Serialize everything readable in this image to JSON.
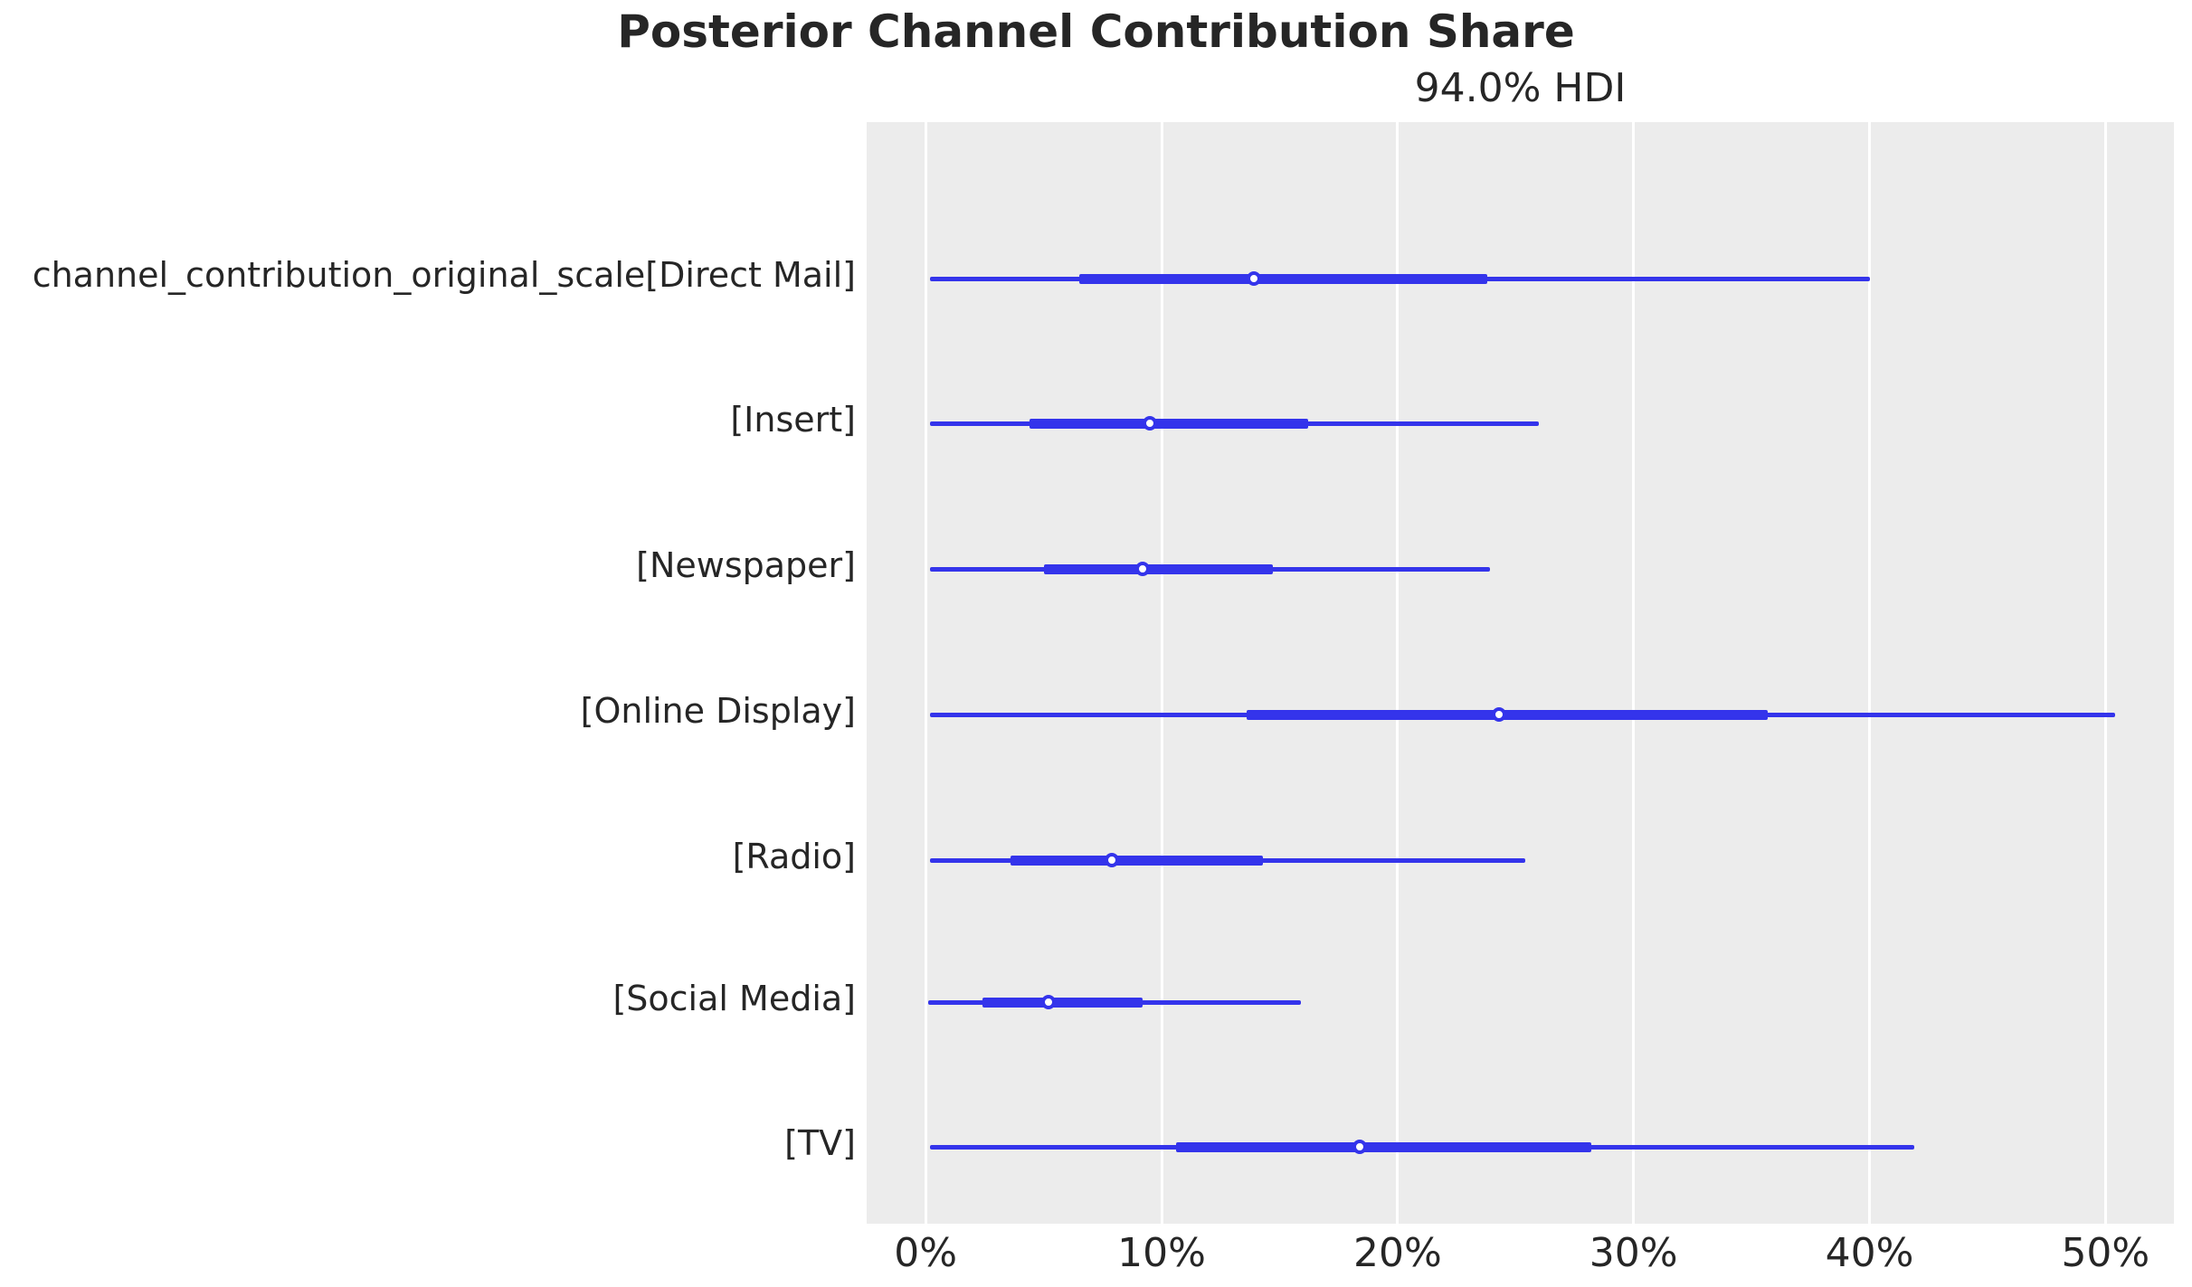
{
  "chart_data": {
    "type": "forest",
    "title": "Posterior Channel Contribution Share",
    "subtitle": "94.0% HDI",
    "hdi_probability": "94.0%",
    "orientation": "horizontal",
    "unit": "percent",
    "xlim": [
      -2.5,
      52.9
    ],
    "x_tick_values": [
      0,
      10,
      20,
      30,
      40,
      50
    ],
    "x_tick_labels": [
      "0%",
      "10%",
      "20%",
      "30%",
      "40%",
      "50%"
    ],
    "grid": "vertical-white-on-gray",
    "legend": "none",
    "series": [
      {
        "label": "channel_contribution_original_scale[Direct Mail]",
        "hdi_low": 0.2,
        "quartile_low": 6.5,
        "point": 13.9,
        "quartile_high": 23.8,
        "hdi_high": 40.0
      },
      {
        "label": "[Insert]",
        "hdi_low": 0.2,
        "quartile_low": 4.4,
        "point": 9.5,
        "quartile_high": 16.2,
        "hdi_high": 26.0
      },
      {
        "label": "[Newspaper]",
        "hdi_low": 0.2,
        "quartile_low": 5.0,
        "point": 9.2,
        "quartile_high": 14.7,
        "hdi_high": 23.9
      },
      {
        "label": "[Online Display]",
        "hdi_low": 0.2,
        "quartile_low": 13.6,
        "point": 24.3,
        "quartile_high": 35.7,
        "hdi_high": 50.4
      },
      {
        "label": "[Radio]",
        "hdi_low": 0.2,
        "quartile_low": 3.6,
        "point": 7.9,
        "quartile_high": 14.3,
        "hdi_high": 25.4
      },
      {
        "label": "[Social Media]",
        "hdi_low": 0.1,
        "quartile_low": 2.4,
        "point": 5.2,
        "quartile_high": 9.2,
        "hdi_high": 15.9
      },
      {
        "label": "[TV]",
        "hdi_low": 0.2,
        "quartile_low": 10.6,
        "point": 18.4,
        "quartile_high": 28.2,
        "hdi_high": 41.9
      }
    ],
    "colors": {
      "interval": "#3434EB",
      "marker_face": "#FFFFFF",
      "plot_background": "#ECECEC",
      "gridline": "#FFFFFF",
      "text": "#262626",
      "figure_background": "#FFFFFF"
    }
  }
}
